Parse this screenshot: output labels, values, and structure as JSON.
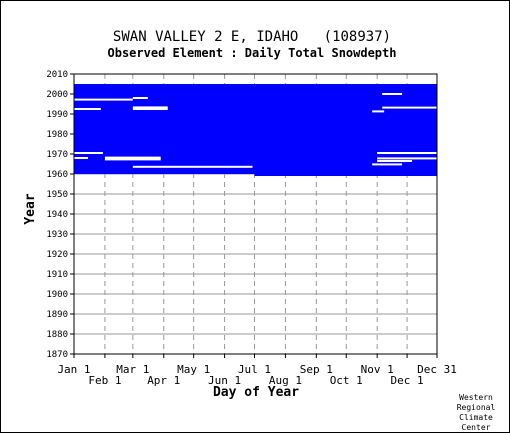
{
  "chart_data": {
    "type": "heatmap",
    "title": "SWAN VALLEY 2 E, IDAHO   (108937)",
    "subtitle": "Observed Element : Daily Total Snowdepth",
    "xlabel": "Day of Year",
    "ylabel": "Year",
    "ylim": [
      1870,
      2010
    ],
    "xlim": [
      1,
      365
    ],
    "grid": true,
    "y_ticks": [
      1870,
      1880,
      1890,
      1900,
      1910,
      1920,
      1930,
      1940,
      1950,
      1960,
      1970,
      1980,
      1990,
      2000,
      2010
    ],
    "x_ticks_upper": [
      {
        "label": "Jan 1",
        "day": 1
      },
      {
        "label": "Mar 1",
        "day": 60
      },
      {
        "label": "May 1",
        "day": 121
      },
      {
        "label": "Jul 1",
        "day": 182
      },
      {
        "label": "Sep 1",
        "day": 244
      },
      {
        "label": "Nov 1",
        "day": 305
      },
      {
        "label": "Dec 31",
        "day": 365
      }
    ],
    "x_ticks_lower": [
      {
        "label": "Feb 1",
        "day": 32
      },
      {
        "label": "Apr 1",
        "day": 91
      },
      {
        "label": "Jun 1",
        "day": 152
      },
      {
        "label": "Aug 1",
        "day": 213
      },
      {
        "label": "Oct 1",
        "day": 274
      },
      {
        "label": "Dec 1",
        "day": 335
      }
    ],
    "series": [
      {
        "values": [
          {
            "start_year": 1960,
            "end_year": 2005,
            "start_day": 1,
            "end_day": 182
          },
          {
            "start_year": 1959,
            "end_year": 2005,
            "start_day": 182,
            "end_day": 365
          }
        ]
      }
    ],
    "missing_years": [
      {
        "year": 1970.5,
        "start_day": 1,
        "end_day": 30
      },
      {
        "year": 1968.2,
        "start_day": 32,
        "end_day": 88
      },
      {
        "year": 1967.3,
        "start_day": 32,
        "end_day": 88
      },
      {
        "year": 1968.0,
        "start_day": 1,
        "end_day": 15
      },
      {
        "year": 1963.6,
        "start_day": 60,
        "end_day": 180
      },
      {
        "year": 1970.5,
        "start_day": 305,
        "end_day": 365
      },
      {
        "year": 1967.8,
        "start_day": 305,
        "end_day": 365
      },
      {
        "year": 1966.5,
        "start_day": 305,
        "end_day": 340
      },
      {
        "year": 1964.8,
        "start_day": 300,
        "end_day": 330
      },
      {
        "year": 1992.5,
        "start_day": 1,
        "end_day": 28
      },
      {
        "year": 1997.2,
        "start_day": 1,
        "end_day": 60
      },
      {
        "year": 1992.5,
        "start_day": 60,
        "end_day": 95
      },
      {
        "year": 1993.3,
        "start_day": 60,
        "end_day": 95
      },
      {
        "year": 1998.0,
        "start_day": 60,
        "end_day": 75
      },
      {
        "year": 1993.2,
        "start_day": 310,
        "end_day": 365
      },
      {
        "year": 1991.3,
        "start_day": 300,
        "end_day": 312
      },
      {
        "year": 2000.0,
        "start_day": 310,
        "end_day": 330
      }
    ],
    "colors": {
      "data": "#0000ff",
      "missing": "#ffffff",
      "grid": "#999999",
      "axis": "#000000"
    }
  },
  "credit": [
    "Western",
    "Regional",
    "Climate",
    "Center"
  ]
}
